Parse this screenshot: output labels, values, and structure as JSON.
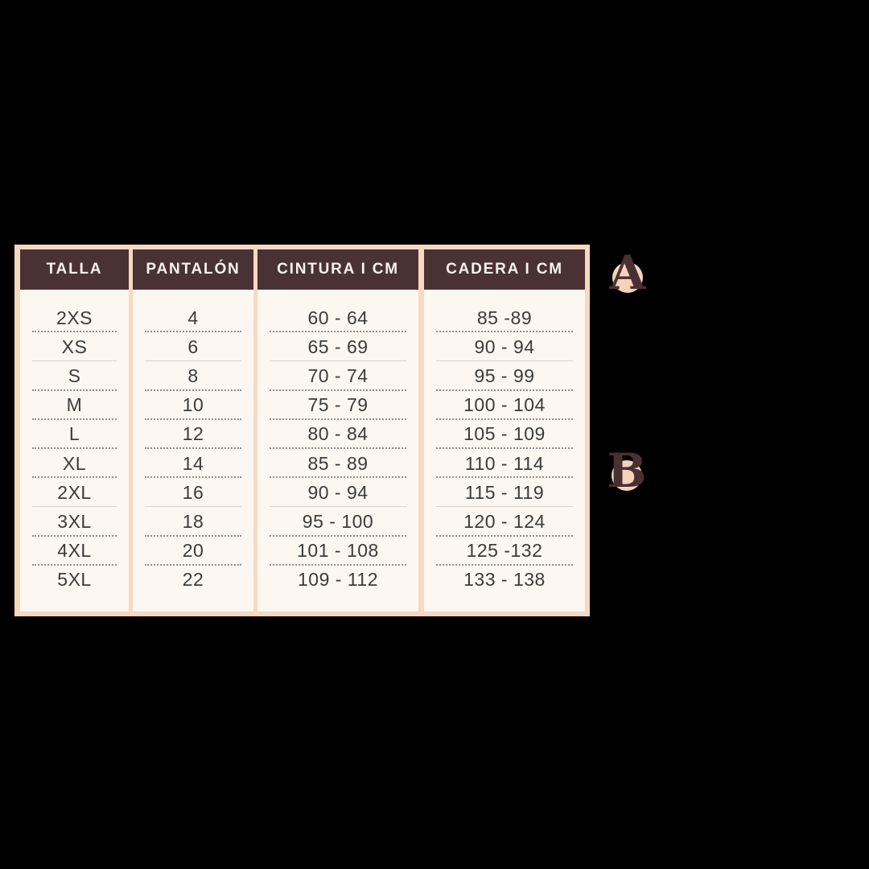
{
  "chart_data": {
    "type": "table",
    "columns": [
      {
        "key": "talla",
        "header": "TALLA",
        "rows": [
          "2XS",
          "XS",
          "S",
          "M",
          "L",
          "XL",
          "2XL",
          "3XL",
          "4XL",
          "5XL"
        ]
      },
      {
        "key": "pantalon",
        "header": "PANTALÓN",
        "rows": [
          "4",
          "6",
          "8",
          "10",
          "12",
          "14",
          "16",
          "18",
          "20",
          "22"
        ]
      },
      {
        "key": "cintura",
        "header": "CINTURA I CM",
        "rows": [
          "60 - 64",
          "65 - 69",
          "70 - 74",
          "75 - 79",
          "80 - 84",
          "85 - 89",
          "90 - 94",
          "95 - 100",
          "101 - 108",
          "109 - 112"
        ]
      },
      {
        "key": "cadera",
        "header": "CADERA I CM",
        "rows": [
          "85 -89",
          "90 - 94",
          "95 - 99",
          "100 - 104",
          "105 - 109",
          "110 - 114",
          "115 - 119",
          "120 - 124",
          "125 -132",
          "133 - 138"
        ]
      }
    ],
    "light_separator_after_rows": [
      2,
      7
    ],
    "legend_position": "none",
    "grid": "dotted-row-separators"
  },
  "annotations": {
    "a": {
      "letter": "A"
    },
    "b": {
      "letter": "B"
    }
  },
  "colors": {
    "bg": "#000000",
    "frame": "#f9d8c1",
    "header-bg": "#4a3234",
    "header-text": "#f7f2ec",
    "body-bg": "#fdf7f1",
    "body-text": "#3b3b3b",
    "separator": "#8f8f8f",
    "separator-light": "#d9d3cd",
    "circle": "#f5d2bc",
    "letter": "#4a2f33"
  }
}
